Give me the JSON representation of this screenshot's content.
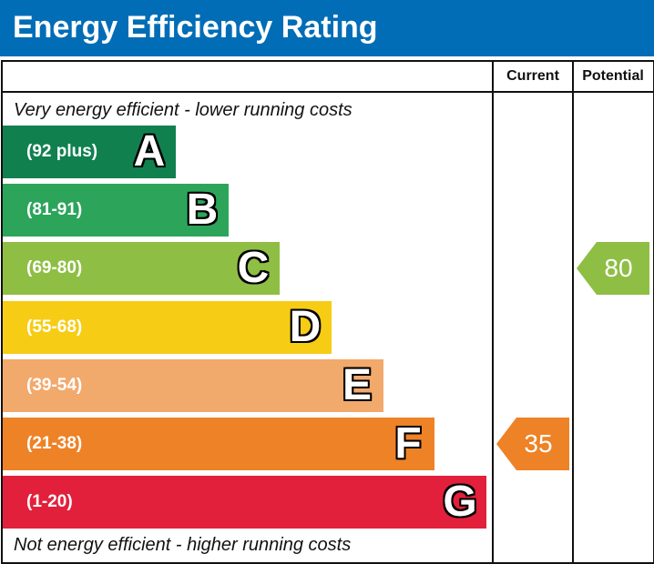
{
  "title": "Energy Efficiency Rating",
  "columns": {
    "current": "Current",
    "potential": "Potential"
  },
  "notes": {
    "top": "Very energy efficient - lower running costs",
    "bottom": "Not energy efficient - higher running costs"
  },
  "chart_data": {
    "type": "bar",
    "title": "Energy Efficiency Rating",
    "categories": [
      "A",
      "B",
      "C",
      "D",
      "E",
      "F",
      "G"
    ],
    "ranges": [
      "(92 plus)",
      "(81-91)",
      "(69-80)",
      "(55-68)",
      "(39-54)",
      "(21-38)",
      "(1-20)"
    ],
    "colors": [
      "#10804f",
      "#2ca55b",
      "#8fbe44",
      "#f6cc15",
      "#f2a96c",
      "#ee8226",
      "#e2203b"
    ],
    "current": {
      "value": 35,
      "band": "F",
      "color": "#ee8226"
    },
    "potential": {
      "value": 80,
      "band": "C",
      "color": "#8fbe44"
    }
  }
}
